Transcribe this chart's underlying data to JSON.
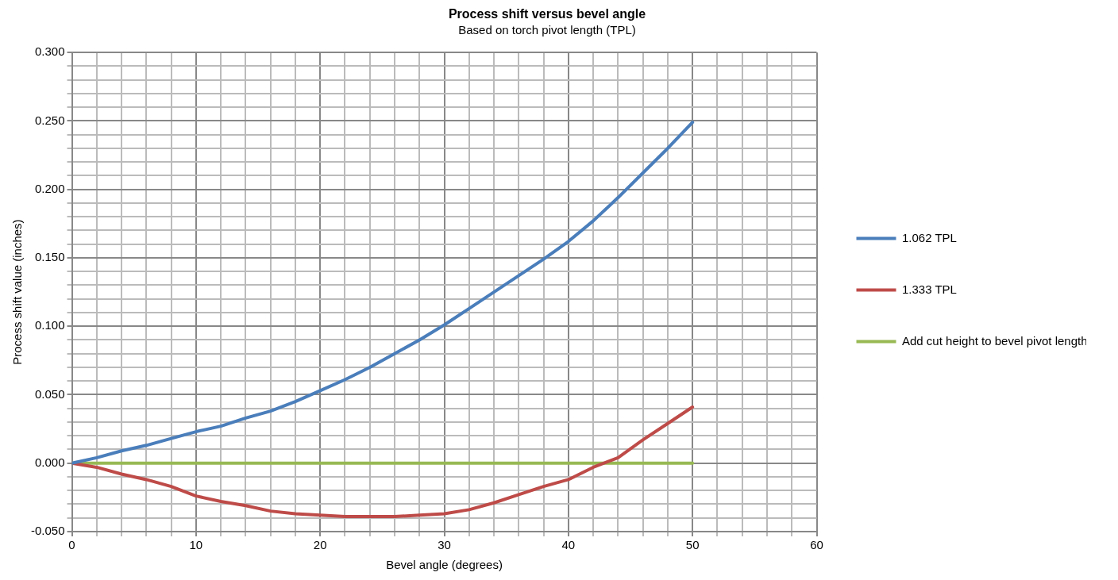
{
  "chart_data": {
    "type": "line",
    "title": "Process shift versus bevel angle",
    "subtitle": "Based on torch pivot length (TPL)",
    "xlabel": "Bevel angle (degrees)",
    "ylabel": "Process shift value (inches)",
    "x": [
      0,
      2,
      4,
      6,
      8,
      10,
      12,
      14,
      16,
      18,
      20,
      22,
      24,
      26,
      28,
      30,
      32,
      34,
      36,
      38,
      40,
      42,
      44,
      46,
      48,
      50
    ],
    "series": [
      {
        "name": "1.062 TPL",
        "color": "#4a7ebb",
        "values": [
          0,
          0.004,
          0.009,
          0.013,
          0.018,
          0.023,
          0.027,
          0.033,
          0.038,
          0.045,
          0.053,
          0.061,
          0.07,
          0.08,
          0.09,
          0.101,
          0.113,
          0.125,
          0.137,
          0.149,
          0.162,
          0.177,
          0.194,
          0.212,
          0.23,
          0.249
        ]
      },
      {
        "name": "1.333 TPL",
        "color": "#be4b48",
        "values": [
          0,
          -0.003,
          -0.008,
          -0.012,
          -0.017,
          -0.024,
          -0.028,
          -0.031,
          -0.035,
          -0.037,
          -0.038,
          -0.039,
          -0.039,
          -0.039,
          -0.038,
          -0.037,
          -0.034,
          -0.029,
          -0.023,
          -0.017,
          -0.012,
          -0.003,
          0.004,
          0.017,
          0.029,
          0.041
        ]
      },
      {
        "name": "Add cut height to bevel pivot length",
        "color": "#98b954",
        "values": [
          0,
          0,
          0,
          0,
          0,
          0,
          0,
          0,
          0,
          0,
          0,
          0,
          0,
          0,
          0,
          0,
          0,
          0,
          0,
          0,
          0,
          0,
          0,
          0,
          0,
          0
        ]
      }
    ],
    "xlim": [
      0,
      60
    ],
    "xticks": [
      0,
      {
        "value": 2,
        "label": null
      },
      {
        "value": 4,
        "label": null
      },
      {
        "value": 6,
        "label": null
      },
      {
        "value": 8,
        "label": null
      },
      10,
      {
        "value": 12,
        "label": null
      },
      {
        "value": 14,
        "label": null
      },
      {
        "value": 16,
        "label": null
      },
      {
        "value": 18,
        "label": null
      },
      20,
      {
        "value": 22,
        "label": null
      },
      {
        "value": 24,
        "label": null
      },
      {
        "value": 26,
        "label": null
      },
      {
        "value": 28,
        "label": null
      },
      30,
      {
        "value": 32,
        "label": null
      },
      {
        "value": 34,
        "label": null
      },
      {
        "value": 36,
        "label": null
      },
      {
        "value": 38,
        "label": null
      },
      40,
      {
        "value": 42,
        "label": null
      },
      {
        "value": 44,
        "label": null
      },
      {
        "value": 46,
        "label": null
      },
      {
        "value": 48,
        "label": null
      },
      50,
      {
        "value": 52,
        "label": null
      },
      {
        "value": 54,
        "label": null
      },
      {
        "value": 56,
        "label": null
      },
      {
        "value": 58,
        "label": null
      },
      60
    ],
    "ylim": [
      -0.05,
      0.3
    ],
    "yticks": [
      {
        "value": -0.05,
        "label": "-0.050"
      },
      {
        "value": -0.04,
        "label": null
      },
      {
        "value": -0.03,
        "label": null
      },
      {
        "value": -0.02,
        "label": null
      },
      {
        "value": -0.01,
        "label": null
      },
      {
        "value": 0,
        "label": "0.000"
      },
      {
        "value": 0.01,
        "label": null
      },
      {
        "value": 0.02,
        "label": null
      },
      {
        "value": 0.03,
        "label": null
      },
      {
        "value": 0.04,
        "label": null
      },
      {
        "value": 0.05,
        "label": "0.050"
      },
      {
        "value": 0.06,
        "label": null
      },
      {
        "value": 0.07,
        "label": null
      },
      {
        "value": 0.08,
        "label": null
      },
      {
        "value": 0.09,
        "label": null
      },
      {
        "value": 0.1,
        "label": "0.100"
      },
      {
        "value": 0.11,
        "label": null
      },
      {
        "value": 0.12,
        "label": null
      },
      {
        "value": 0.13,
        "label": null
      },
      {
        "value": 0.14,
        "label": null
      },
      {
        "value": 0.15,
        "label": "0.150"
      },
      {
        "value": 0.16,
        "label": null
      },
      {
        "value": 0.17,
        "label": null
      },
      {
        "value": 0.18,
        "label": null
      },
      {
        "value": 0.19,
        "label": null
      },
      {
        "value": 0.2,
        "label": "0.200"
      },
      {
        "value": 0.21,
        "label": null
      },
      {
        "value": 0.22,
        "label": null
      },
      {
        "value": 0.23,
        "label": null
      },
      {
        "value": 0.24,
        "label": null
      },
      {
        "value": 0.25,
        "label": "0.250"
      },
      {
        "value": 0.26,
        "label": null
      },
      {
        "value": 0.27,
        "label": null
      },
      {
        "value": 0.28,
        "label": null
      },
      {
        "value": 0.29,
        "label": null
      },
      {
        "value": 0.3,
        "label": "0.300"
      }
    ],
    "grid": true,
    "legend": "right",
    "marker": "none",
    "line_style": "solid"
  }
}
